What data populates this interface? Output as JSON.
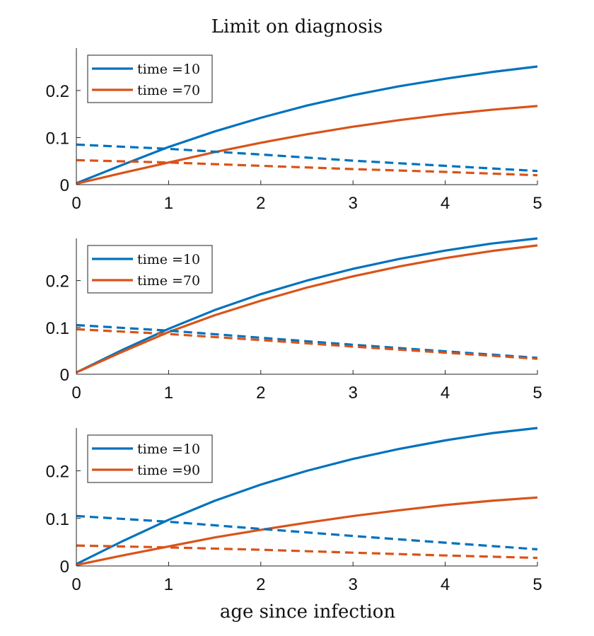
{
  "figure": {
    "title": "Limit on diagnosis",
    "xlabel": "age since infection"
  },
  "chart_data": [
    {
      "type": "line",
      "xlim": [
        0,
        5
      ],
      "ylim": [
        0,
        0.29
      ],
      "xticks": [
        "0",
        "1",
        "2",
        "3",
        "4",
        "5"
      ],
      "yticks": [
        "0",
        "0.1",
        "0.2"
      ],
      "legend": {
        "position": "top-left",
        "entries": [
          "time =10",
          "time =70"
        ]
      },
      "series": [
        {
          "name": "time =10",
          "style": "solid",
          "color": "#0072BD",
          "x": [
            0,
            0.5,
            1,
            1.5,
            2,
            2.5,
            3,
            3.5,
            4,
            4.5,
            5
          ],
          "y": [
            0.003,
            0.042,
            0.08,
            0.113,
            0.142,
            0.168,
            0.19,
            0.209,
            0.225,
            0.239,
            0.251
          ]
        },
        {
          "name": "time =70",
          "style": "solid",
          "color": "#D95319",
          "x": [
            0,
            0.5,
            1,
            1.5,
            2,
            2.5,
            3,
            3.5,
            4,
            4.5,
            5
          ],
          "y": [
            0.002,
            0.025,
            0.047,
            0.069,
            0.089,
            0.107,
            0.123,
            0.137,
            0.149,
            0.159,
            0.167
          ]
        },
        {
          "style": "dashed",
          "color": "#0072BD",
          "x": [
            0,
            1,
            2,
            3,
            4,
            5
          ],
          "y": [
            0.085,
            0.076,
            0.064,
            0.051,
            0.04,
            0.029
          ]
        },
        {
          "style": "dashed",
          "color": "#D95319",
          "x": [
            0,
            1,
            2,
            3,
            4,
            5
          ],
          "y": [
            0.052,
            0.047,
            0.04,
            0.033,
            0.027,
            0.02
          ]
        }
      ]
    },
    {
      "type": "line",
      "xlim": [
        0,
        5
      ],
      "ylim": [
        0,
        0.29
      ],
      "xticks": [
        "0",
        "1",
        "2",
        "3",
        "4",
        "5"
      ],
      "yticks": [
        "0",
        "0.1",
        "0.2"
      ],
      "legend": {
        "position": "top-left",
        "entries": [
          "time =10",
          "time =70"
        ]
      },
      "series": [
        {
          "name": "time =10",
          "style": "solid",
          "color": "#0072BD",
          "x": [
            0,
            0.5,
            1,
            1.5,
            2,
            2.5,
            3,
            3.5,
            4,
            4.5,
            5
          ],
          "y": [
            0.004,
            0.052,
            0.097,
            0.137,
            0.171,
            0.2,
            0.225,
            0.246,
            0.264,
            0.279,
            0.29
          ]
        },
        {
          "name": "time =70",
          "style": "solid",
          "color": "#D95319",
          "x": [
            0,
            0.5,
            1,
            1.5,
            2,
            2.5,
            3,
            3.5,
            4,
            4.5,
            5
          ],
          "y": [
            0.004,
            0.048,
            0.09,
            0.126,
            0.157,
            0.185,
            0.209,
            0.23,
            0.248,
            0.263,
            0.275
          ]
        },
        {
          "style": "dashed",
          "color": "#0072BD",
          "x": [
            0,
            1,
            2,
            3,
            4,
            5
          ],
          "y": [
            0.105,
            0.093,
            0.078,
            0.063,
            0.049,
            0.035
          ]
        },
        {
          "style": "dashed",
          "color": "#D95319",
          "x": [
            0,
            1,
            2,
            3,
            4,
            5
          ],
          "y": [
            0.096,
            0.086,
            0.073,
            0.059,
            0.046,
            0.033
          ]
        }
      ]
    },
    {
      "type": "line",
      "xlim": [
        0,
        5
      ],
      "ylim": [
        0,
        0.29
      ],
      "xticks": [
        "0",
        "1",
        "2",
        "3",
        "4",
        "5"
      ],
      "yticks": [
        "0",
        "0.1",
        "0.2"
      ],
      "legend": {
        "position": "top-left",
        "entries": [
          "time =10",
          "time =90"
        ]
      },
      "series": [
        {
          "name": "time =10",
          "style": "solid",
          "color": "#0072BD",
          "x": [
            0,
            0.5,
            1,
            1.5,
            2,
            2.5,
            3,
            3.5,
            4,
            4.5,
            5
          ],
          "y": [
            0.004,
            0.052,
            0.097,
            0.137,
            0.171,
            0.2,
            0.225,
            0.246,
            0.264,
            0.279,
            0.29
          ]
        },
        {
          "name": "time =90",
          "style": "solid",
          "color": "#D95319",
          "x": [
            0,
            0.5,
            1,
            1.5,
            2,
            2.5,
            3,
            3.5,
            4,
            4.5,
            5
          ],
          "y": [
            0.002,
            0.022,
            0.041,
            0.06,
            0.076,
            0.091,
            0.105,
            0.117,
            0.128,
            0.137,
            0.144
          ]
        },
        {
          "style": "dashed",
          "color": "#0072BD",
          "x": [
            0,
            1,
            2,
            3,
            4,
            5
          ],
          "y": [
            0.105,
            0.093,
            0.078,
            0.063,
            0.049,
            0.035
          ]
        },
        {
          "style": "dashed",
          "color": "#D95319",
          "x": [
            0,
            1,
            2,
            3,
            4,
            5
          ],
          "y": [
            0.043,
            0.039,
            0.034,
            0.028,
            0.022,
            0.017
          ]
        }
      ]
    }
  ]
}
